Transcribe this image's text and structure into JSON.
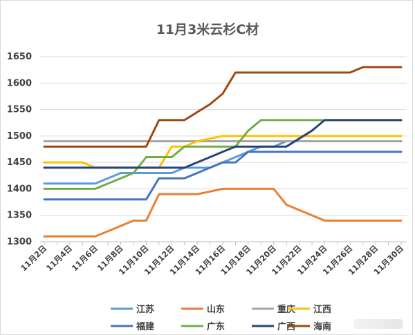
{
  "chart_data": {
    "type": "line",
    "title": "11月3米云杉C材",
    "xlabel": "",
    "ylabel": "",
    "ylim": [
      1300,
      1650
    ],
    "yticks": [
      1300,
      1350,
      1400,
      1450,
      1500,
      1550,
      1600,
      1650
    ],
    "x_tick_labels": [
      "11月2日",
      "11月4日",
      "11月6日",
      "11月8日",
      "11月10日",
      "11月12日",
      "11月14日",
      "11月16日",
      "11月18日",
      "11月20日",
      "11月22日",
      "11月24日",
      "11月26日",
      "11月28日",
      "11月30日"
    ],
    "x": [
      2,
      3,
      4,
      5,
      6,
      7,
      8,
      9,
      10,
      11,
      12,
      13,
      14,
      15,
      16,
      17,
      18,
      19,
      20,
      21,
      22,
      23,
      24,
      25,
      26,
      27,
      28,
      29,
      30
    ],
    "grid": true,
    "legend_position": "bottom",
    "series": [
      {
        "name": "江苏",
        "color": "#5B9BD5",
        "values": [
          1410,
          1410,
          1410,
          1410,
          1410,
          1420,
          1430,
          1430,
          1430,
          1430,
          1430,
          1440,
          1440,
          1440,
          1450,
          1460,
          1470,
          1480,
          1480,
          1490,
          1490,
          1490,
          1490,
          1490,
          1490,
          1490,
          1490,
          1490,
          1490
        ]
      },
      {
        "name": "山东",
        "color": "#ED7D31",
        "values": [
          1310,
          1310,
          1310,
          1310,
          1310,
          1320,
          1330,
          1340,
          1340,
          1390,
          1390,
          1390,
          1390,
          1395,
          1400,
          1400,
          1400,
          1400,
          1400,
          1370,
          1360,
          1350,
          1340,
          1340,
          1340,
          1340,
          1340,
          1340,
          1340
        ]
      },
      {
        "name": "重庆",
        "color": "#A5A5A5",
        "values": [
          1490,
          1490,
          1490,
          1490,
          1490,
          1490,
          1490,
          1490,
          1490,
          1490,
          1490,
          1490,
          1490,
          1490,
          1490,
          1490,
          1490,
          1490,
          1490,
          1490,
          1490,
          1490,
          1490,
          1490,
          1490,
          1490,
          1490,
          1490,
          1490
        ]
      },
      {
        "name": "江西",
        "color": "#FFC000",
        "values": [
          1450,
          1450,
          1450,
          1450,
          1440,
          1440,
          1440,
          1440,
          1440,
          1440,
          1480,
          1480,
          1490,
          1495,
          1500,
          1500,
          1500,
          1500,
          1500,
          1500,
          1500,
          1500,
          1500,
          1500,
          1500,
          1500,
          1500,
          1500,
          1500
        ]
      },
      {
        "name": "福建",
        "color": "#4472C4",
        "values": [
          1380,
          1380,
          1380,
          1380,
          1380,
          1380,
          1380,
          1380,
          1380,
          1420,
          1420,
          1420,
          1430,
          1440,
          1450,
          1450,
          1470,
          1470,
          1470,
          1470,
          1470,
          1470,
          1470,
          1470,
          1470,
          1470,
          1470,
          1470,
          1470
        ]
      },
      {
        "name": "广东",
        "color": "#70AD47",
        "values": [
          1400,
          1400,
          1400,
          1400,
          1400,
          1410,
          1420,
          1430,
          1460,
          1460,
          1460,
          1480,
          1480,
          1480,
          1480,
          1480,
          1510,
          1530,
          1530,
          1530,
          1530,
          1530,
          1530,
          1530,
          1530,
          1530,
          1530,
          1530,
          1530
        ]
      },
      {
        "name": "广西",
        "color": "#264478",
        "values": [
          1440,
          1440,
          1440,
          1440,
          1440,
          1440,
          1440,
          1440,
          1440,
          1440,
          1440,
          1440,
          1450,
          1460,
          1470,
          1480,
          1480,
          1480,
          1480,
          1480,
          1495,
          1510,
          1530,
          1530,
          1530,
          1530,
          1530,
          1530,
          1530
        ]
      },
      {
        "name": "海南",
        "color": "#9E480E",
        "values": [
          1480,
          1480,
          1480,
          1480,
          1480,
          1480,
          1480,
          1480,
          1480,
          1530,
          1530,
          1530,
          1545,
          1560,
          1580,
          1620,
          1620,
          1620,
          1620,
          1620,
          1620,
          1620,
          1620,
          1620,
          1620,
          1630,
          1630,
          1630,
          1630
        ]
      }
    ]
  }
}
